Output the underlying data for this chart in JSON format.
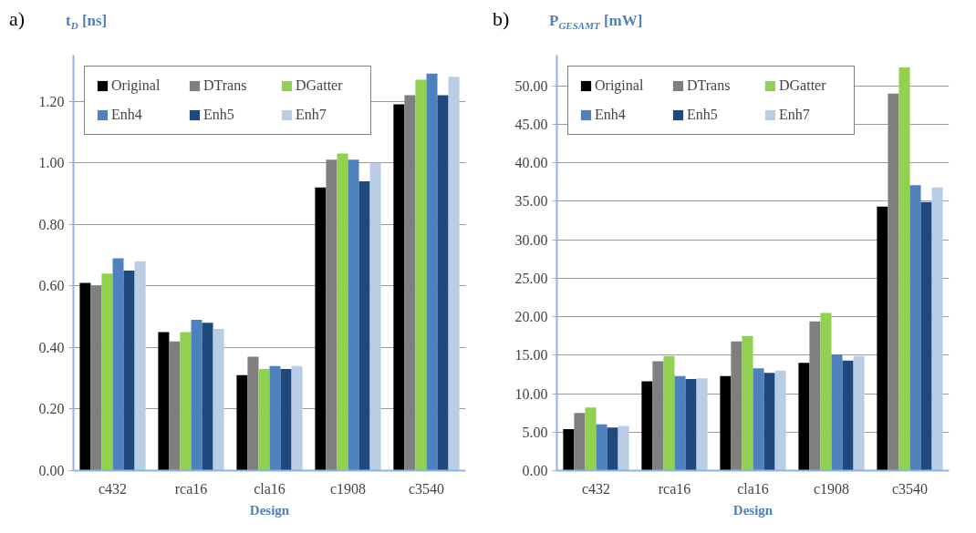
{
  "chart_data": [
    {
      "type": "bar",
      "title": "a)",
      "ylabel": "t$_{D}$ [ns]",
      "xlabel": "Design",
      "categories": [
        "c432",
        "rca16",
        "cla16",
        "c1908",
        "c3540"
      ],
      "series": [
        {
          "name": "Original",
          "color": "#000000",
          "values": [
            0.61,
            0.45,
            0.31,
            0.92,
            1.19
          ]
        },
        {
          "name": "DTrans",
          "color": "#7f7f7f",
          "values": [
            0.6,
            0.42,
            0.37,
            1.01,
            1.22
          ]
        },
        {
          "name": "DGatter",
          "color": "#92d050",
          "values": [
            0.64,
            0.45,
            0.33,
            1.03,
            1.27
          ]
        },
        {
          "name": "Enh4",
          "color": "#4f81bd",
          "values": [
            0.69,
            0.49,
            0.34,
            1.01,
            1.29
          ]
        },
        {
          "name": "Enh5",
          "color": "#1f497d",
          "values": [
            0.65,
            0.48,
            0.33,
            0.94,
            1.22
          ]
        },
        {
          "name": "Enh7",
          "color": "#b9cde5",
          "values": [
            0.68,
            0.46,
            0.34,
            1.0,
            1.28
          ]
        }
      ],
      "ylim": [
        0,
        1.35
      ],
      "yticks": [
        {
          "value": 0,
          "label": "0.00"
        },
        {
          "value": 0.2,
          "label": "0.20"
        },
        {
          "value": 0.4,
          "label": "0.40"
        },
        {
          "value": 0.6,
          "label": "0.60"
        },
        {
          "value": 0.8,
          "label": "0.80"
        },
        {
          "value": 1.0,
          "label": "1.00"
        },
        {
          "value": 1.2,
          "label": "1.20"
        }
      ],
      "grid": "y",
      "legend": "top left"
    },
    {
      "type": "bar",
      "title": "b)",
      "ylabel": "P$_{GESAMT}$ [mW]",
      "xlabel": "Design",
      "categories": [
        "c432",
        "rca16",
        "cla16",
        "c1908",
        "c3540"
      ],
      "series": [
        {
          "name": "Original",
          "color": "#000000",
          "values": [
            5.4,
            11.6,
            12.3,
            14.0,
            34.3
          ]
        },
        {
          "name": "DTrans",
          "color": "#7f7f7f",
          "values": [
            7.5,
            14.2,
            16.8,
            19.4,
            49.0
          ]
        },
        {
          "name": "DGatter",
          "color": "#92d050",
          "values": [
            8.2,
            14.9,
            17.5,
            20.5,
            52.4
          ]
        },
        {
          "name": "Enh4",
          "color": "#4f81bd",
          "values": [
            6.0,
            12.3,
            13.3,
            15.1,
            37.1
          ]
        },
        {
          "name": "Enh5",
          "color": "#1f497d",
          "values": [
            5.6,
            11.9,
            12.7,
            14.3,
            34.9
          ]
        },
        {
          "name": "Enh7",
          "color": "#b9cde5",
          "values": [
            5.8,
            12.0,
            13.0,
            14.9,
            36.8
          ]
        }
      ],
      "ylim": [
        0,
        54
      ],
      "yticks": [
        {
          "value": 0,
          "label": "0.00"
        },
        {
          "value": 5,
          "label": "5.00"
        },
        {
          "value": 10,
          "label": "10.00"
        },
        {
          "value": 15,
          "label": "15.00"
        },
        {
          "value": 20,
          "label": "20.00"
        },
        {
          "value": 25,
          "label": "25.00"
        },
        {
          "value": 30,
          "label": "30.00"
        },
        {
          "value": 35,
          "label": "35.00"
        },
        {
          "value": 40,
          "label": "40.00"
        },
        {
          "value": 45,
          "label": "45.00"
        },
        {
          "value": 50,
          "label": "50.00"
        }
      ],
      "grid": "y",
      "legend": "top left"
    }
  ]
}
